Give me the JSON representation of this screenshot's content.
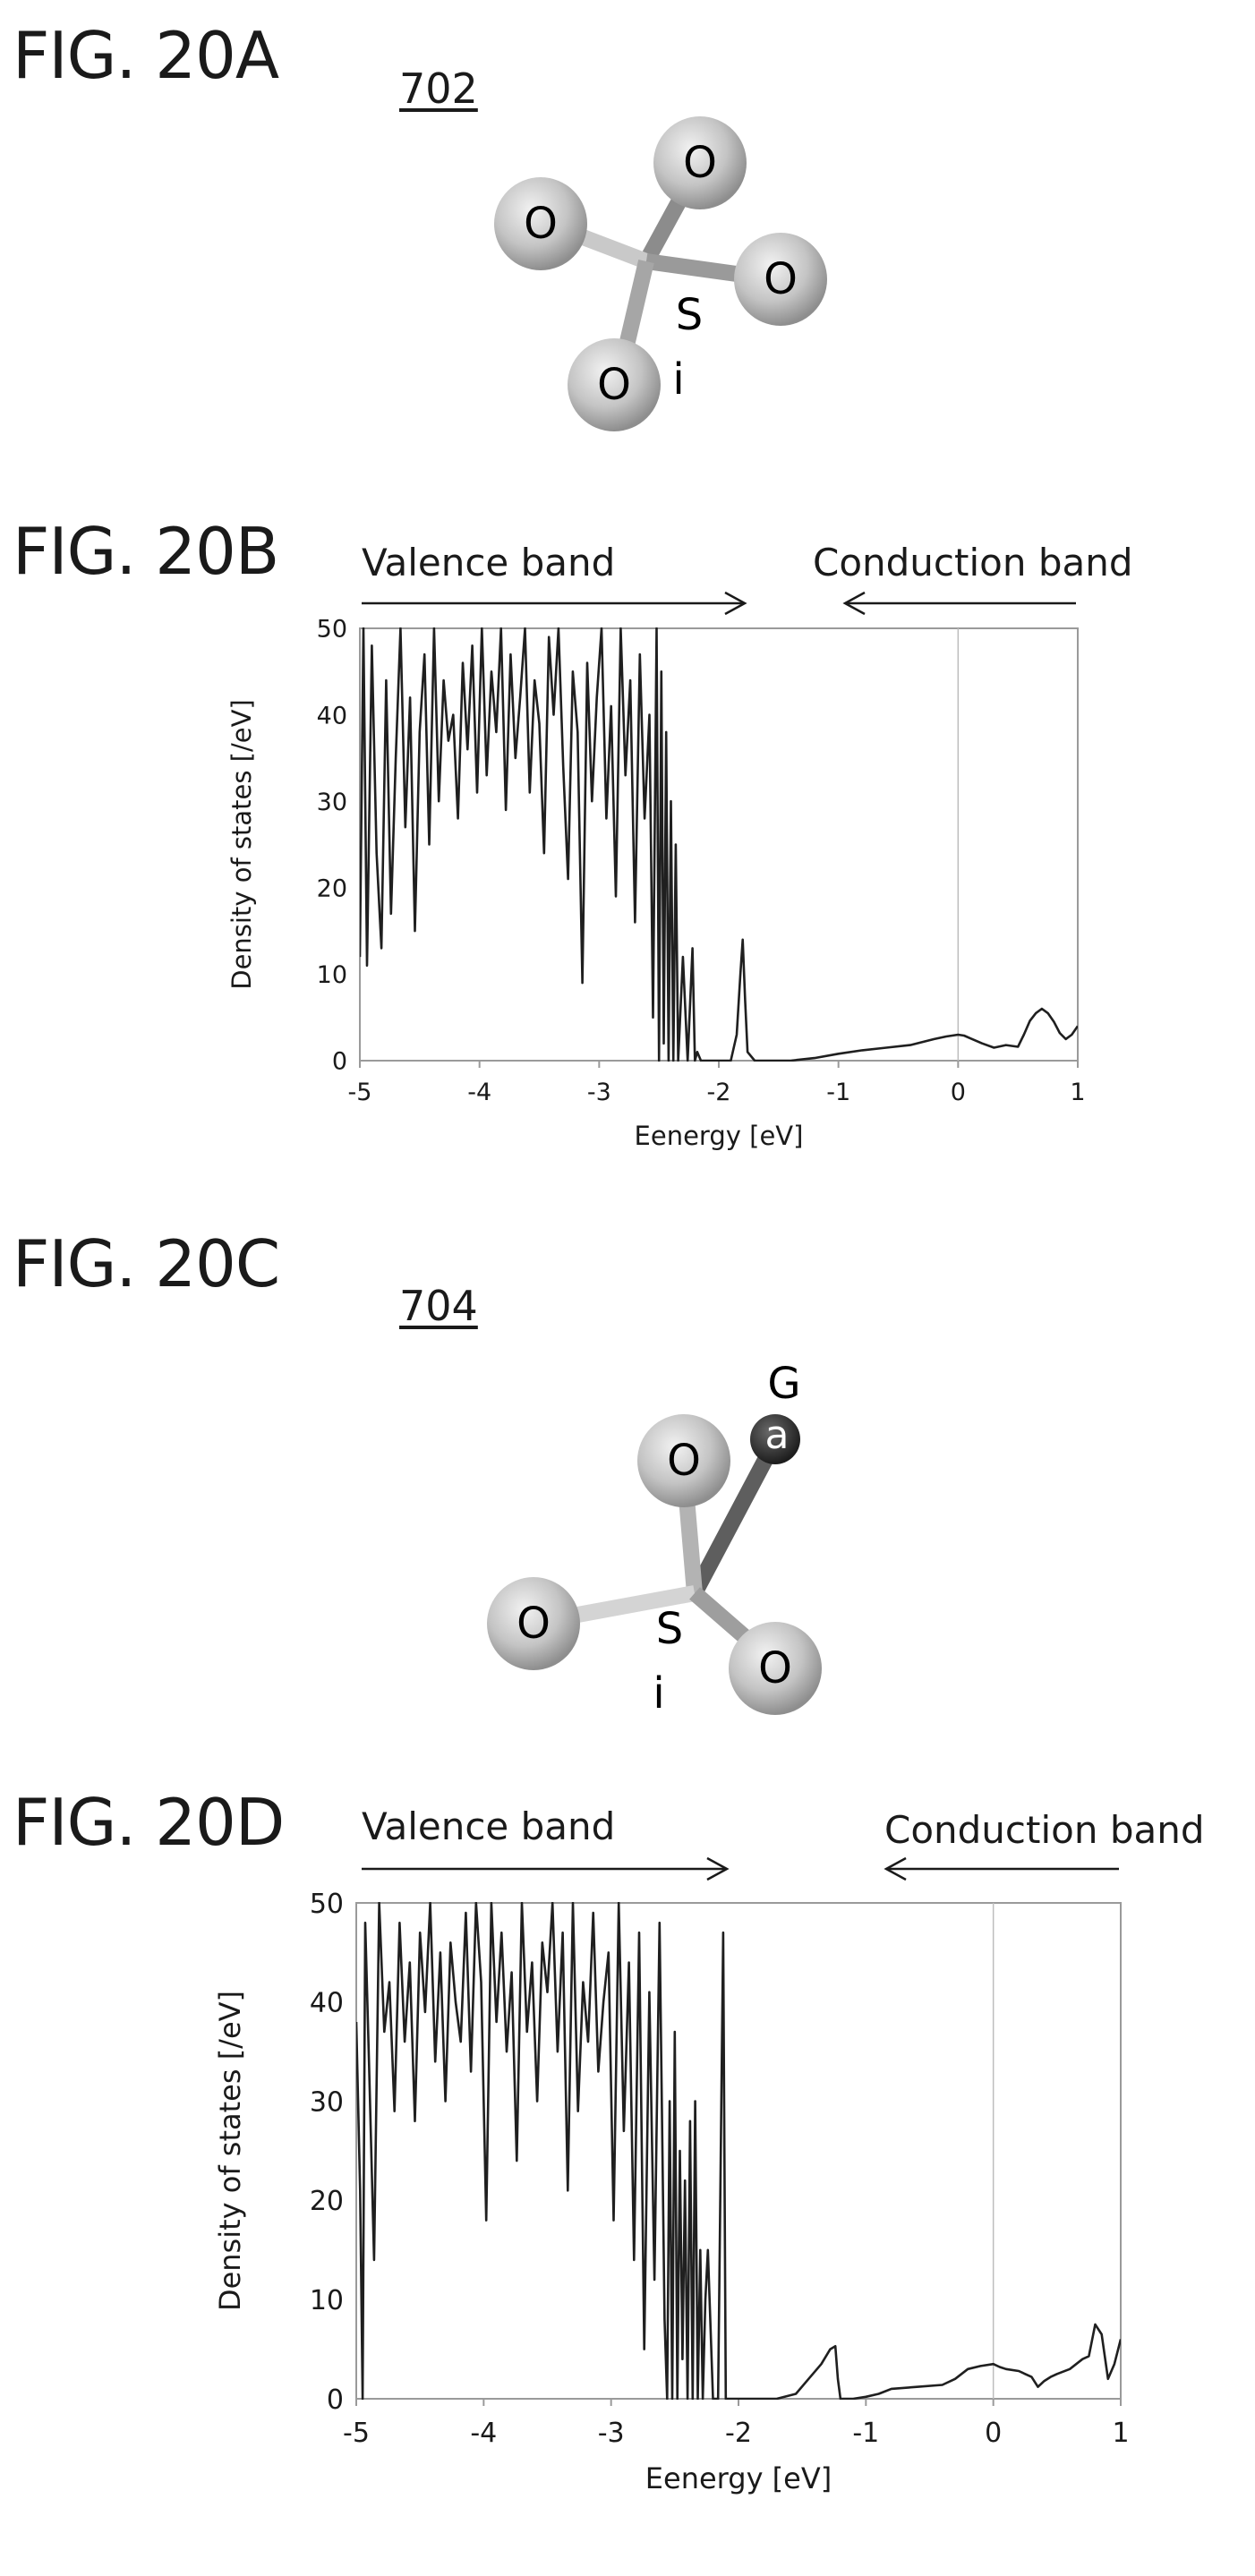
{
  "fig20a": {
    "label": "FIG. 20A",
    "ref": "702",
    "atoms": {
      "top": "O",
      "left": "O",
      "right": "O",
      "bottom": "O",
      "center_s": "S",
      "center_i": "i"
    }
  },
  "fig20b": {
    "label": "FIG. 20B",
    "valence": "Valence band",
    "conduction": "Conduction band"
  },
  "fig20c": {
    "label": "FIG. 20C",
    "ref": "704",
    "atoms": {
      "ga_g": "G",
      "ga_a": "a",
      "top": "O",
      "left": "O",
      "right": "O",
      "center_s": "S",
      "center_i": "i"
    }
  },
  "fig20d": {
    "label": "FIG. 20D",
    "valence": "Valence band",
    "conduction": "Conduction band"
  },
  "chart_data": [
    {
      "type": "line",
      "title": "",
      "xlabel": "Eenergy [eV]",
      "ylabel": "Density of states [/eV]",
      "xlim": [
        -5,
        1
      ],
      "ylim": [
        0,
        50
      ],
      "xticks": [
        "-5",
        "-4",
        "-3",
        "-2",
        "-1",
        "0",
        "1"
      ],
      "yticks": [
        "0",
        "10",
        "20",
        "30",
        "40",
        "50"
      ],
      "reference_line_x": 0,
      "series": [
        {
          "x": [
            -5,
            -4.97,
            -4.94,
            -4.9,
            -4.86,
            -4.82,
            -4.78,
            -4.74,
            -4.7,
            -4.66,
            -4.62,
            -4.58,
            -4.54,
            -4.5,
            -4.46,
            -4.42,
            -4.38,
            -4.34,
            -4.3,
            -4.26,
            -4.22,
            -4.18,
            -4.14,
            -4.1,
            -4.06,
            -4.02,
            -3.98,
            -3.94,
            -3.9,
            -3.86,
            -3.82,
            -3.78,
            -3.74,
            -3.7,
            -3.66,
            -3.62,
            -3.58,
            -3.54,
            -3.5,
            -3.46,
            -3.42,
            -3.38,
            -3.34,
            -3.3,
            -3.26,
            -3.22,
            -3.18,
            -3.14,
            -3.1,
            -3.06,
            -3.02,
            -2.98,
            -2.94,
            -2.9,
            -2.86,
            -2.82,
            -2.78,
            -2.74,
            -2.7,
            -2.66,
            -2.62,
            -2.58,
            -2.55,
            -2.52,
            -2.5,
            -2.48,
            -2.46,
            -2.44,
            -2.42,
            -2.4,
            -2.38,
            -2.36,
            -2.34,
            -2.3,
            -2.26,
            -2.22,
            -2.2,
            -2.18,
            -2.15,
            -2.1,
            -1.9,
            -1.85,
            -1.82,
            -1.8,
            -1.78,
            -1.76,
            -1.7,
            -1.6,
            -1.4,
            -1.2,
            -1.0,
            -0.8,
            -0.6,
            -0.4,
            -0.2,
            -0.1,
            0.0,
            0.05,
            0.1,
            0.2,
            0.3,
            0.4,
            0.5,
            0.55,
            0.6,
            0.65,
            0.7,
            0.75,
            0.8,
            0.85,
            0.9,
            0.95,
            1.0
          ],
          "y": [
            12,
            50,
            11,
            48,
            24,
            13,
            44,
            17,
            35,
            50,
            27,
            42,
            15,
            38,
            47,
            25,
            50,
            30,
            44,
            37,
            40,
            28,
            46,
            36,
            48,
            31,
            50,
            33,
            45,
            38,
            50,
            29,
            47,
            35,
            42,
            50,
            31,
            44,
            39,
            24,
            49,
            40,
            50,
            34,
            21,
            45,
            38,
            9,
            46,
            30,
            42,
            50,
            28,
            41,
            19,
            50,
            33,
            44,
            16,
            47,
            28,
            40,
            5,
            50,
            0,
            45,
            2,
            38,
            0,
            30,
            0,
            25,
            0,
            12,
            0,
            13,
            0,
            1,
            0,
            0,
            0,
            3,
            10,
            14,
            7,
            1,
            0,
            0,
            0,
            0.3,
            0.8,
            1.2,
            1.5,
            1.8,
            2.5,
            2.8,
            3.0,
            2.9,
            2.6,
            2.0,
            1.5,
            1.8,
            1.6,
            3.0,
            4.6,
            5.5,
            6.0,
            5.5,
            4.5,
            3.2,
            2.5,
            3.0,
            4.0
          ]
        }
      ]
    },
    {
      "type": "line",
      "title": "",
      "xlabel": "Eenergy [eV]",
      "ylabel": "Density of states [/eV]",
      "xlim": [
        -5,
        1
      ],
      "ylim": [
        0,
        50
      ],
      "xticks": [
        "-5",
        "-4",
        "-3",
        "-2",
        "-1",
        "0",
        "1"
      ],
      "yticks": [
        "0",
        "10",
        "20",
        "30",
        "40",
        "50"
      ],
      "reference_line_x": 0,
      "series": [
        {
          "x": [
            -5,
            -4.97,
            -4.95,
            -4.93,
            -4.9,
            -4.86,
            -4.82,
            -4.78,
            -4.74,
            -4.7,
            -4.66,
            -4.62,
            -4.58,
            -4.54,
            -4.5,
            -4.46,
            -4.42,
            -4.38,
            -4.34,
            -4.3,
            -4.26,
            -4.22,
            -4.18,
            -4.14,
            -4.1,
            -4.06,
            -4.02,
            -3.98,
            -3.94,
            -3.9,
            -3.86,
            -3.82,
            -3.78,
            -3.74,
            -3.7,
            -3.66,
            -3.62,
            -3.58,
            -3.54,
            -3.5,
            -3.46,
            -3.42,
            -3.38,
            -3.34,
            -3.3,
            -3.26,
            -3.22,
            -3.18,
            -3.14,
            -3.1,
            -3.06,
            -3.02,
            -2.98,
            -2.94,
            -2.9,
            -2.86,
            -2.82,
            -2.78,
            -2.74,
            -2.7,
            -2.66,
            -2.62,
            -2.58,
            -2.56,
            -2.54,
            -2.52,
            -2.5,
            -2.48,
            -2.46,
            -2.44,
            -2.42,
            -2.4,
            -2.38,
            -2.36,
            -2.34,
            -2.32,
            -2.3,
            -2.28,
            -2.26,
            -2.24,
            -2.2,
            -2.16,
            -2.12,
            -2.1,
            -2.08,
            -1.9,
            -1.7,
            -1.55,
            -1.45,
            -1.35,
            -1.28,
            -1.24,
            -1.22,
            -1.2,
            -1.1,
            -1.0,
            -0.9,
            -0.8,
            -0.6,
            -0.4,
            -0.3,
            -0.2,
            -0.1,
            0.0,
            0.05,
            0.1,
            0.2,
            0.3,
            0.35,
            0.4,
            0.45,
            0.5,
            0.6,
            0.7,
            0.75,
            0.8,
            0.85,
            0.9,
            0.95,
            1.0
          ],
          "y": [
            38,
            21,
            0,
            48,
            34,
            14,
            50,
            37,
            42,
            29,
            48,
            36,
            44,
            28,
            47,
            39,
            50,
            34,
            45,
            30,
            46,
            40,
            36,
            49,
            33,
            50,
            42,
            18,
            50,
            38,
            47,
            35,
            43,
            24,
            50,
            37,
            44,
            30,
            46,
            41,
            50,
            35,
            47,
            21,
            50,
            29,
            42,
            36,
            49,
            33,
            40,
            45,
            18,
            50,
            27,
            44,
            14,
            47,
            5,
            41,
            12,
            48,
            8,
            0,
            30,
            0,
            37,
            0,
            25,
            4,
            22,
            0,
            28,
            0,
            30,
            0,
            15,
            0,
            10,
            15,
            0,
            0,
            47,
            0,
            0,
            0,
            0,
            0.5,
            2,
            3.5,
            5,
            5.3,
            2,
            0,
            0,
            0.2,
            0.5,
            1,
            1.2,
            1.4,
            2,
            3,
            3.3,
            3.5,
            3.2,
            3,
            2.8,
            2.2,
            1.2,
            1.8,
            2.2,
            2.5,
            3,
            4,
            4.3,
            7.5,
            6.5,
            2,
            3.5,
            6
          ]
        }
      ]
    }
  ]
}
